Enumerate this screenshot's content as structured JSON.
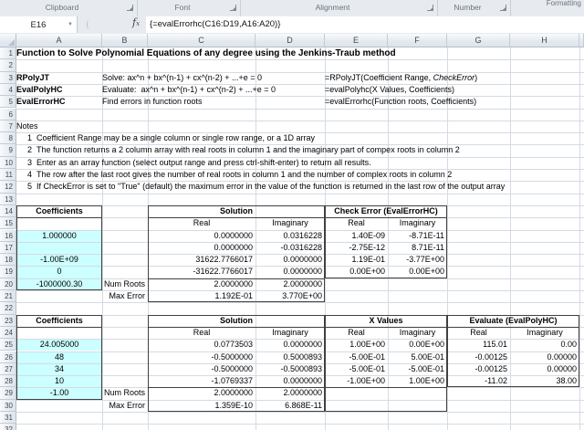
{
  "ribbon": {
    "groups": [
      {
        "label": "Clipboard"
      },
      {
        "label": "Font"
      },
      {
        "label": "Alignment"
      },
      {
        "label": "Number"
      }
    ],
    "overflow_label": "Formatting"
  },
  "formula_bar": {
    "cell_ref": "E16",
    "formula": "{=evalErrorhc(C16:D19,A16:A20)}"
  },
  "sheet": {
    "columns": [
      "A",
      "B",
      "C",
      "D",
      "E",
      "F",
      "G",
      "H"
    ],
    "row_count": 32,
    "colors": {
      "highlight": "#ccffff"
    },
    "cells": [
      {
        "r": 1,
        "c": "A",
        "t": "Function to Solve Polynomial Equations of any degree using the Jenkins-Traub method",
        "b": 1,
        "title": 1
      },
      {
        "r": 3,
        "c": "A",
        "t": "RPolyJT",
        "b": 1
      },
      {
        "r": 3,
        "c": "B",
        "t": "Solve: ax^n + bx^(n-1) + cx^(n-2) + ...+e = 0"
      },
      {
        "r": 3,
        "c": "E",
        "runs": [
          {
            "t": "=RPolyJT(Coefficient Range, "
          },
          {
            "t": "CheckError",
            "i": 1
          },
          {
            "t": ")"
          }
        ]
      },
      {
        "r": 4,
        "c": "A",
        "t": "EvalPolyHC",
        "b": 1
      },
      {
        "r": 4,
        "c": "B",
        "t": "Evaluate:  ax^n + bx^(n-1) + cx^(n-2) + ...+e = 0"
      },
      {
        "r": 4,
        "c": "E",
        "t": "=evalPolyhc(X Values, Coefficients)"
      },
      {
        "r": 5,
        "c": "A",
        "t": "EvalErrorHC",
        "b": 1
      },
      {
        "r": 5,
        "c": "B",
        "t": "Find errors in function roots"
      },
      {
        "r": 5,
        "c": "E",
        "t": "=evalErrorhc(Function roots, Coefficients)"
      },
      {
        "r": 7,
        "c": "A",
        "t": "Notes"
      },
      {
        "r": 8,
        "c": "A",
        "n": "1",
        "t": "Coefficient Range may be a single column or single row range, or a 1D array"
      },
      {
        "r": 9,
        "c": "A",
        "n": "2",
        "t": "The function returns a 2 column array with real roots in column 1 and the imaginary part of compex roots in column 2"
      },
      {
        "r": 10,
        "c": "A",
        "n": "3",
        "t": "Enter as an array function (select output range and press ctrl-shift-enter) to return all results."
      },
      {
        "r": 11,
        "c": "A",
        "n": "4",
        "t": "The row after the last root gives the number of real roots in column 1 and the number of complex roots in column 2"
      },
      {
        "r": 12,
        "c": "A",
        "n": "5",
        "t": "If CheckError is set to \"True\" (default) the maximum error in the value of the function is returned in the last row of the output array"
      },
      {
        "r": 14,
        "c": "A",
        "t": "Coefficients",
        "b": 1,
        "a": "c"
      },
      {
        "r": 14,
        "c": "C",
        "sp": 2,
        "t": "Solution",
        "b": 1,
        "a": "c"
      },
      {
        "r": 14,
        "c": "E",
        "sp": 2,
        "t": "Check Error (EvalErrorHC)",
        "b": 1,
        "a": "c"
      },
      {
        "r": 15,
        "c": "C",
        "t": "Real",
        "a": "c"
      },
      {
        "r": 15,
        "c": "D",
        "t": "Imaginary",
        "a": "c"
      },
      {
        "r": 15,
        "c": "E",
        "t": "Real",
        "a": "c"
      },
      {
        "r": 15,
        "c": "F",
        "t": "Imaginary",
        "a": "c"
      },
      {
        "r": 16,
        "c": "A",
        "t": "1.000000",
        "a": "c",
        "h": 1
      },
      {
        "r": 16,
        "c": "C",
        "t": "0.0000000",
        "a": "r"
      },
      {
        "r": 16,
        "c": "D",
        "t": "0.0316228",
        "a": "r"
      },
      {
        "r": 16,
        "c": "E",
        "t": "1.40E-09",
        "a": "r"
      },
      {
        "r": 16,
        "c": "F",
        "t": "-8.71E-11",
        "a": "r"
      },
      {
        "r": 17,
        "c": "A",
        "t": "",
        "h": 1
      },
      {
        "r": 17,
        "c": "C",
        "t": "0.0000000",
        "a": "r"
      },
      {
        "r": 17,
        "c": "D",
        "t": "-0.0316228",
        "a": "r"
      },
      {
        "r": 17,
        "c": "E",
        "t": "-2.75E-12",
        "a": "r"
      },
      {
        "r": 17,
        "c": "F",
        "t": "8.71E-11",
        "a": "r"
      },
      {
        "r": 18,
        "c": "A",
        "t": "-1.00E+09",
        "a": "c",
        "h": 1
      },
      {
        "r": 18,
        "c": "C",
        "t": "31622.7766017",
        "a": "r"
      },
      {
        "r": 18,
        "c": "D",
        "t": "0.0000000",
        "a": "r"
      },
      {
        "r": 18,
        "c": "E",
        "t": "1.19E-01",
        "a": "r"
      },
      {
        "r": 18,
        "c": "F",
        "t": "-3.77E+00",
        "a": "r"
      },
      {
        "r": 19,
        "c": "A",
        "t": "0",
        "a": "c",
        "h": 1
      },
      {
        "r": 19,
        "c": "C",
        "t": "-31622.7766017",
        "a": "r"
      },
      {
        "r": 19,
        "c": "D",
        "t": "0.0000000",
        "a": "r"
      },
      {
        "r": 19,
        "c": "E",
        "t": "0.00E+00",
        "a": "r"
      },
      {
        "r": 19,
        "c": "F",
        "t": "0.00E+00",
        "a": "r"
      },
      {
        "r": 20,
        "c": "A",
        "t": "-1000000.30",
        "a": "c",
        "h": 1
      },
      {
        "r": 20,
        "c": "B",
        "t": "Num Roots",
        "a": "r"
      },
      {
        "r": 20,
        "c": "C",
        "t": "2.0000000",
        "a": "r"
      },
      {
        "r": 20,
        "c": "D",
        "t": "2.0000000",
        "a": "r"
      },
      {
        "r": 21,
        "c": "B",
        "t": "Max Error",
        "a": "r"
      },
      {
        "r": 21,
        "c": "C",
        "t": "1.192E-01",
        "a": "r"
      },
      {
        "r": 21,
        "c": "D",
        "t": "3.770E+00",
        "a": "r"
      },
      {
        "r": 23,
        "c": "A",
        "t": "Coefficients",
        "b": 1,
        "a": "c"
      },
      {
        "r": 23,
        "c": "C",
        "sp": 2,
        "t": "Solution",
        "b": 1,
        "a": "c"
      },
      {
        "r": 23,
        "c": "E",
        "sp": 2,
        "t": "X Values",
        "b": 1,
        "a": "c"
      },
      {
        "r": 23,
        "c": "G",
        "sp": 2,
        "t": "Evaluate (EvalPolyHC)",
        "b": 1,
        "a": "c"
      },
      {
        "r": 24,
        "c": "C",
        "t": "Real",
        "a": "c"
      },
      {
        "r": 24,
        "c": "D",
        "t": "Imaginary",
        "a": "c"
      },
      {
        "r": 24,
        "c": "E",
        "t": "Real",
        "a": "c"
      },
      {
        "r": 24,
        "c": "F",
        "t": "Imaginary",
        "a": "c"
      },
      {
        "r": 24,
        "c": "G",
        "t": "Real",
        "a": "c"
      },
      {
        "r": 24,
        "c": "H",
        "t": "Imaginary",
        "a": "c"
      },
      {
        "r": 25,
        "c": "A",
        "t": "24.005000",
        "a": "c",
        "h": 1
      },
      {
        "r": 25,
        "c": "C",
        "t": "0.0773503",
        "a": "r"
      },
      {
        "r": 25,
        "c": "D",
        "t": "0.0000000",
        "a": "r"
      },
      {
        "r": 25,
        "c": "E",
        "t": "1.00E+00",
        "a": "r"
      },
      {
        "r": 25,
        "c": "F",
        "t": "0.00E+00",
        "a": "r"
      },
      {
        "r": 25,
        "c": "G",
        "t": "115.01",
        "a": "r"
      },
      {
        "r": 25,
        "c": "H",
        "t": "0.00",
        "a": "r"
      },
      {
        "r": 26,
        "c": "A",
        "t": "48",
        "a": "c",
        "h": 1
      },
      {
        "r": 26,
        "c": "C",
        "t": "-0.5000000",
        "a": "r"
      },
      {
        "r": 26,
        "c": "D",
        "t": "0.5000893",
        "a": "r"
      },
      {
        "r": 26,
        "c": "E",
        "t": "-5.00E-01",
        "a": "r"
      },
      {
        "r": 26,
        "c": "F",
        "t": "5.00E-01",
        "a": "r"
      },
      {
        "r": 26,
        "c": "G",
        "t": "-0.00125",
        "a": "r"
      },
      {
        "r": 26,
        "c": "H",
        "t": "0.00000",
        "a": "r"
      },
      {
        "r": 27,
        "c": "A",
        "t": "34",
        "a": "c",
        "h": 1
      },
      {
        "r": 27,
        "c": "C",
        "t": "-0.5000000",
        "a": "r"
      },
      {
        "r": 27,
        "c": "D",
        "t": "-0.5000893",
        "a": "r"
      },
      {
        "r": 27,
        "c": "E",
        "t": "-5.00E-01",
        "a": "r"
      },
      {
        "r": 27,
        "c": "F",
        "t": "-5.00E-01",
        "a": "r"
      },
      {
        "r": 27,
        "c": "G",
        "t": "-0.00125",
        "a": "r"
      },
      {
        "r": 27,
        "c": "H",
        "t": "0.00000",
        "a": "r"
      },
      {
        "r": 28,
        "c": "A",
        "t": "10",
        "a": "c",
        "h": 1
      },
      {
        "r": 28,
        "c": "C",
        "t": "-1.0769337",
        "a": "r"
      },
      {
        "r": 28,
        "c": "D",
        "t": "0.0000000",
        "a": "r"
      },
      {
        "r": 28,
        "c": "E",
        "t": "-1.00E+00",
        "a": "r"
      },
      {
        "r": 28,
        "c": "F",
        "t": "1.00E+00",
        "a": "r"
      },
      {
        "r": 28,
        "c": "G",
        "t": "-11.02",
        "a": "r"
      },
      {
        "r": 28,
        "c": "H",
        "t": "38.00",
        "a": "r"
      },
      {
        "r": 29,
        "c": "A",
        "t": "-1.00",
        "a": "c",
        "h": 1
      },
      {
        "r": 29,
        "c": "B",
        "t": "Num Roots",
        "a": "r"
      },
      {
        "r": 29,
        "c": "C",
        "t": "2.0000000",
        "a": "r"
      },
      {
        "r": 29,
        "c": "D",
        "t": "2.0000000",
        "a": "r"
      },
      {
        "r": 30,
        "c": "B",
        "t": "Max Error",
        "a": "r"
      },
      {
        "r": 30,
        "c": "C",
        "t": "1.359E-10",
        "a": "r"
      },
      {
        "r": 30,
        "c": "D",
        "t": "6.868E-11",
        "a": "r"
      }
    ],
    "boxes": [
      {
        "r1": 14,
        "r2": 20,
        "c1": "A",
        "c2": "A",
        "seps": [
          15
        ]
      },
      {
        "r1": 14,
        "r2": 21,
        "c1": "C",
        "c2": "D",
        "seps": [
          15,
          20
        ]
      },
      {
        "r1": 14,
        "r2": 19,
        "c1": "E",
        "c2": "F",
        "seps": [
          15
        ]
      },
      {
        "r1": 23,
        "r2": 29,
        "c1": "A",
        "c2": "A",
        "seps": [
          24
        ]
      },
      {
        "r1": 23,
        "r2": 30,
        "c1": "C",
        "c2": "D",
        "seps": [
          24,
          29
        ]
      },
      {
        "r1": 23,
        "r2": 30,
        "c1": "E",
        "c2": "F",
        "seps": [
          24,
          29
        ]
      },
      {
        "r1": 23,
        "r2": 28,
        "c1": "G",
        "c2": "H",
        "seps": [
          24
        ]
      }
    ]
  }
}
